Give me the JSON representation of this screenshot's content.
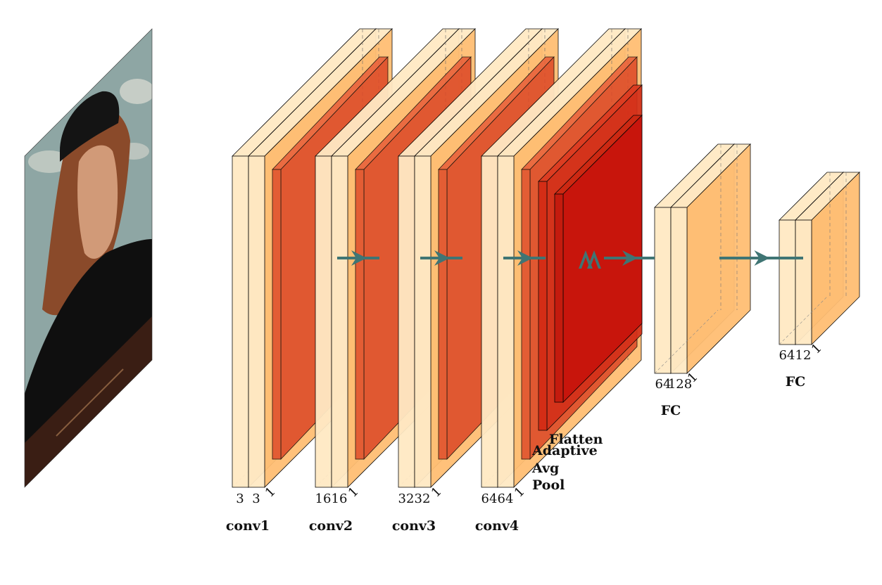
{
  "input_image": {
    "icon": "portrait-painting-icon",
    "sky_color": "#8ea6a4",
    "hair_color": "#8a4a2a",
    "coat_color": "#111111",
    "ledge_color": "#3a1e14"
  },
  "blocks": [
    {
      "name": "conv1",
      "label": "conv1",
      "dim_a": "3",
      "dim_b": "3",
      "dim_c": "1"
    },
    {
      "name": "conv2",
      "label": "conv2",
      "dim_a": "16",
      "dim_b": "16",
      "dim_c": "1"
    },
    {
      "name": "conv3",
      "label": "conv3",
      "dim_a": "32",
      "dim_b": "32",
      "dim_c": "1"
    },
    {
      "name": "conv4",
      "label": "conv4",
      "dim_a": "64",
      "dim_b": "64",
      "dim_c": "1"
    }
  ],
  "pool": {
    "adaptive_label": [
      "Adaptive",
      "Avg",
      "Pool"
    ],
    "flatten_label": "Flatten"
  },
  "fc_layers": [
    {
      "name": "fc1",
      "label": "FC",
      "dim_a": "64",
      "dim_b": "128",
      "dim_c": "1"
    },
    {
      "name": "fc2",
      "label": "FC",
      "dim_a": "64",
      "dim_b": "12",
      "dim_c": "1"
    }
  ],
  "colors": {
    "conv_light": "#ffe9c4",
    "conv_mid": "#fdc78a",
    "conv_face": "#ffbe73",
    "pool_red": "#dd4a28",
    "flatten_red": "#c8140c",
    "arrow": "#3f7574",
    "edge": "#000000"
  }
}
